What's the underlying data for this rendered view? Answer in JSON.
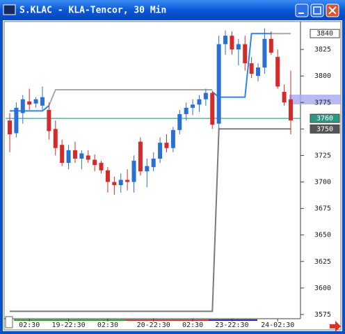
{
  "chart_data": {
    "type": "candlestick",
    "title": "S.KLAC - KLA-Tencor, 30 Min",
    "categories": [
      null,
      null,
      null,
      "02:30",
      null,
      null,
      null,
      null,
      null,
      "19-22:30",
      null,
      null,
      null,
      null,
      null,
      "02:30",
      null,
      null,
      null,
      null,
      null,
      null,
      "20-22:30",
      null,
      null,
      null,
      null,
      null,
      "02:30",
      null,
      null,
      null,
      null,
      null,
      "23-22:30",
      null,
      null,
      null,
      null,
      null,
      null,
      "24-02:30",
      null,
      null
    ],
    "open": [
      3758,
      3746,
      3765,
      3776,
      3774,
      3772,
      3768,
      3750,
      3735,
      3718,
      3730,
      3722,
      3725,
      3721,
      3718,
      3711,
      3700,
      3697,
      3702,
      3700,
      3738,
      3710,
      3714,
      3722,
      3737,
      3732,
      3749,
      3764,
      3770,
      3773,
      3778,
      3784,
      3755,
      3830,
      3838,
      3825,
      3830,
      3812,
      3800,
      3808,
      3835,
      3818,
      3785,
      3778
    ],
    "high": [
      3765,
      3775,
      3782,
      3788,
      3780,
      3790,
      3775,
      3758,
      3740,
      3735,
      3738,
      3730,
      3730,
      3726,
      3720,
      3714,
      3705,
      3708,
      3712,
      3725,
      3742,
      3722,
      3728,
      3742,
      3745,
      3752,
      3768,
      3775,
      3778,
      3782,
      3788,
      3786,
      3838,
      3843,
      3842,
      3835,
      3838,
      3818,
      3812,
      3845,
      3842,
      3825,
      3792,
      3805
    ],
    "low": [
      3728,
      3742,
      3755,
      3768,
      3770,
      3768,
      3740,
      3725,
      3715,
      3712,
      3718,
      3712,
      3718,
      3710,
      3708,
      3690,
      3688,
      3690,
      3692,
      3690,
      3706,
      3695,
      3710,
      3718,
      3728,
      3728,
      3745,
      3758,
      3763,
      3766,
      3772,
      3750,
      3750,
      3820,
      3820,
      3810,
      3805,
      3798,
      3795,
      3802,
      3820,
      3788,
      3772,
      3745
    ],
    "close": [
      3745,
      3770,
      3778,
      3773,
      3778,
      3780,
      3748,
      3732,
      3718,
      3730,
      3722,
      3727,
      3721,
      3716,
      3711,
      3700,
      3697,
      3702,
      3700,
      3720,
      3710,
      3715,
      3722,
      3737,
      3732,
      3749,
      3764,
      3770,
      3773,
      3778,
      3784,
      3754,
      3830,
      3838,
      3825,
      3830,
      3812,
      3802,
      3808,
      3835,
      3822,
      3790,
      3775,
      3758
    ],
    "up_color": "#2a6fd6",
    "down_color": "#d42a2a",
    "series": [
      {
        "color": "#2a86e0",
        "values": [
          3767,
          3767,
          3767,
          3767,
          3767,
          3767,
          3772,
          null,
          null,
          null,
          null,
          null,
          null,
          null,
          null,
          null,
          null,
          null,
          null,
          null,
          null,
          null,
          null,
          null,
          null,
          null,
          null,
          null,
          null,
          null,
          null,
          3785,
          3780,
          3780,
          3780,
          3780,
          3780,
          3840,
          3840,
          3840,
          3840,
          null,
          null,
          null
        ]
      },
      {
        "color": "#a8a8a8",
        "values": [
          null,
          null,
          null,
          null,
          null,
          null,
          3772,
          3787,
          3787,
          3787,
          3787,
          3787,
          3787,
          3787,
          3787,
          3787,
          3787,
          3787,
          3787,
          3787,
          3787,
          3787,
          3787,
          3787,
          3787,
          3787,
          3787,
          3787,
          3787,
          3787,
          3787,
          3787,
          null,
          null,
          null,
          null,
          null,
          null,
          null,
          null,
          3840,
          3840,
          3840,
          3840
        ]
      },
      {
        "color": "#7a7a7a",
        "values": [
          3578,
          3578,
          3578,
          3578,
          3578,
          3578,
          3578,
          3578,
          3578,
          3578,
          3578,
          3578,
          3578,
          3578,
          3578,
          3578,
          3578,
          3578,
          3578,
          3578,
          3578,
          3578,
          3578,
          3578,
          3578,
          3578,
          3578,
          3578,
          3578,
          3578,
          3578,
          3578,
          3750,
          3750,
          3750,
          3750,
          3750,
          3750,
          3750,
          3750,
          3750,
          3750,
          3750,
          3750
        ]
      }
    ],
    "hline": {
      "value": 3760,
      "color": "#1f8a78"
    },
    "ylim": [
      3573,
      3850
    ],
    "yticks": [
      3575,
      3600,
      3625,
      3650,
      3675,
      3700,
      3725,
      3750,
      3775,
      3800,
      3825
    ],
    "price_labels": [
      3840,
      3760,
      3750
    ]
  }
}
